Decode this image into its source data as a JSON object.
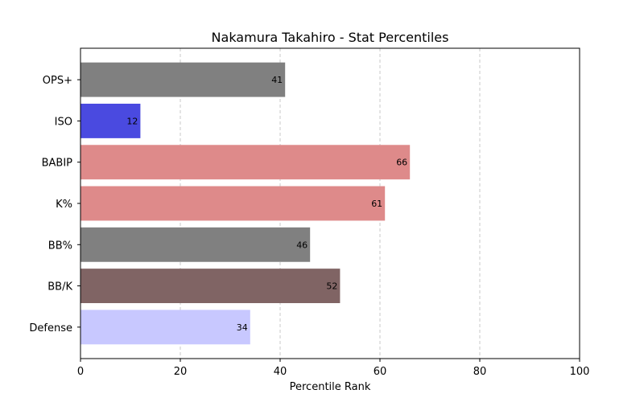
{
  "chart_data": {
    "type": "bar",
    "orientation": "horizontal",
    "title": "Nakamura Takahiro - Stat Percentiles",
    "xlabel": "Percentile Rank",
    "ylabel": "",
    "xlim": [
      0,
      100
    ],
    "xticks": [
      0,
      20,
      40,
      60,
      80,
      100
    ],
    "grid": "x-dashed",
    "categories": [
      "OPS+",
      "ISO",
      "BABIP",
      "K%",
      "BB%",
      "BB/K",
      "Defense"
    ],
    "values": [
      41,
      12,
      66,
      61,
      46,
      52,
      34
    ],
    "colors": [
      "#808080",
      "#4a4ae0",
      "#de8a8a",
      "#de8a8a",
      "#808080",
      "#806464",
      "#c8c8ff"
    ]
  }
}
